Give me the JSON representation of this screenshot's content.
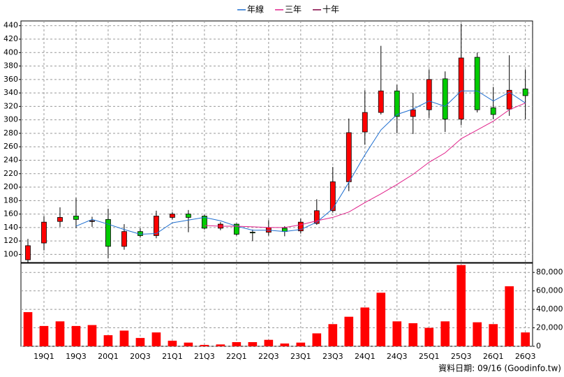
{
  "chart_data": {
    "type": "candlestick",
    "categories": [
      null,
      "19Q1",
      null,
      "19Q3",
      null,
      "20Q1",
      null,
      "20Q3",
      null,
      "21Q1",
      null,
      "21Q3",
      null,
      "22Q1",
      null,
      "22Q3",
      null,
      "23Q1",
      null,
      "23Q3",
      null,
      "24Q1",
      null,
      "24Q3",
      null,
      "25Q1",
      null,
      "25Q3",
      null,
      "26Q1",
      null,
      "26Q3"
    ],
    "open": [
      92,
      117,
      149,
      157,
      149,
      152,
      112,
      134,
      128,
      155,
      160,
      157,
      139,
      145,
      133,
      133,
      139,
      135,
      146,
      165,
      208,
      282,
      311,
      343,
      305,
      315,
      361,
      301,
      393,
      318,
      316,
      346
    ],
    "high": [
      123,
      157,
      170,
      184,
      156,
      168,
      145,
      139,
      165,
      163,
      166,
      159,
      148,
      146,
      137,
      151,
      142,
      153,
      182,
      230,
      302,
      344,
      410,
      352,
      340,
      375,
      372,
      443,
      400,
      349,
      396,
      375
    ],
    "low": [
      88,
      106,
      141,
      139,
      141,
      94,
      107,
      125,
      124,
      152,
      133,
      137,
      136,
      128,
      120,
      128,
      127,
      131,
      144,
      162,
      194,
      263,
      308,
      280,
      279,
      303,
      282,
      292,
      311,
      301,
      306,
      301
    ],
    "close": [
      113,
      148,
      155,
      152,
      150,
      112,
      134,
      128,
      157,
      160,
      155,
      139,
      145,
      130,
      132,
      140,
      134,
      148,
      165,
      208,
      281,
      311,
      343,
      305,
      315,
      360,
      301,
      392,
      315,
      308,
      344,
      336
    ],
    "up_color": "#ff0000",
    "down_color": "#00cc00",
    "ylim": [
      88,
      447
    ],
    "yticks": [
      100,
      120,
      140,
      160,
      180,
      200,
      220,
      240,
      260,
      280,
      300,
      320,
      340,
      360,
      380,
      400,
      420,
      440
    ],
    "grid": true,
    "legend": "top",
    "series": [
      {
        "name": "年線",
        "color": "#1f6fd0",
        "values": [
          null,
          null,
          null,
          142,
          152,
          145,
          137,
          130,
          131,
          147,
          151,
          155,
          150,
          142,
          136,
          136,
          134,
          137,
          148,
          168,
          207,
          248,
          285,
          308,
          316,
          328,
          320,
          343,
          343,
          328,
          341,
          325
        ]
      },
      {
        "name": "三年",
        "color": "#e0218a",
        "values": [
          null,
          null,
          null,
          null,
          null,
          null,
          null,
          null,
          null,
          null,
          null,
          143,
          142,
          142,
          141,
          140,
          140,
          144,
          150,
          155,
          163,
          177,
          190,
          204,
          219,
          237,
          251,
          272,
          285,
          298,
          315,
          325
        ]
      },
      {
        "name": "十年",
        "color": "#800040",
        "values": [
          null,
          null,
          null,
          null,
          null,
          null,
          null,
          null,
          null,
          null,
          null,
          null,
          null,
          null,
          null,
          null,
          null,
          null,
          null,
          null,
          null,
          null,
          null,
          null,
          null,
          null,
          null,
          null,
          null,
          null,
          null,
          null
        ]
      }
    ],
    "volume": {
      "color": "#ff0000",
      "values": [
        37000,
        22000,
        27000,
        22000,
        23000,
        12000,
        17000,
        9000,
        15000,
        6000,
        4000,
        1500,
        2000,
        4500,
        4500,
        7000,
        3000,
        4000,
        14000,
        24000,
        32000,
        42000,
        58000,
        27000,
        25000,
        20000,
        27000,
        88000,
        26000,
        24000,
        65000,
        15000
      ],
      "ylim": [
        0,
        90000
      ],
      "yticks": [
        0,
        {
          "value": 20000,
          "label": "20,000"
        },
        {
          "value": 40000,
          "label": "40,000"
        },
        {
          "value": 60000,
          "label": "60,000"
        },
        {
          "value": 80000,
          "label": "80,000"
        }
      ]
    },
    "footnote": "資料日期: 09/16  (Goodinfo.tw)"
  }
}
